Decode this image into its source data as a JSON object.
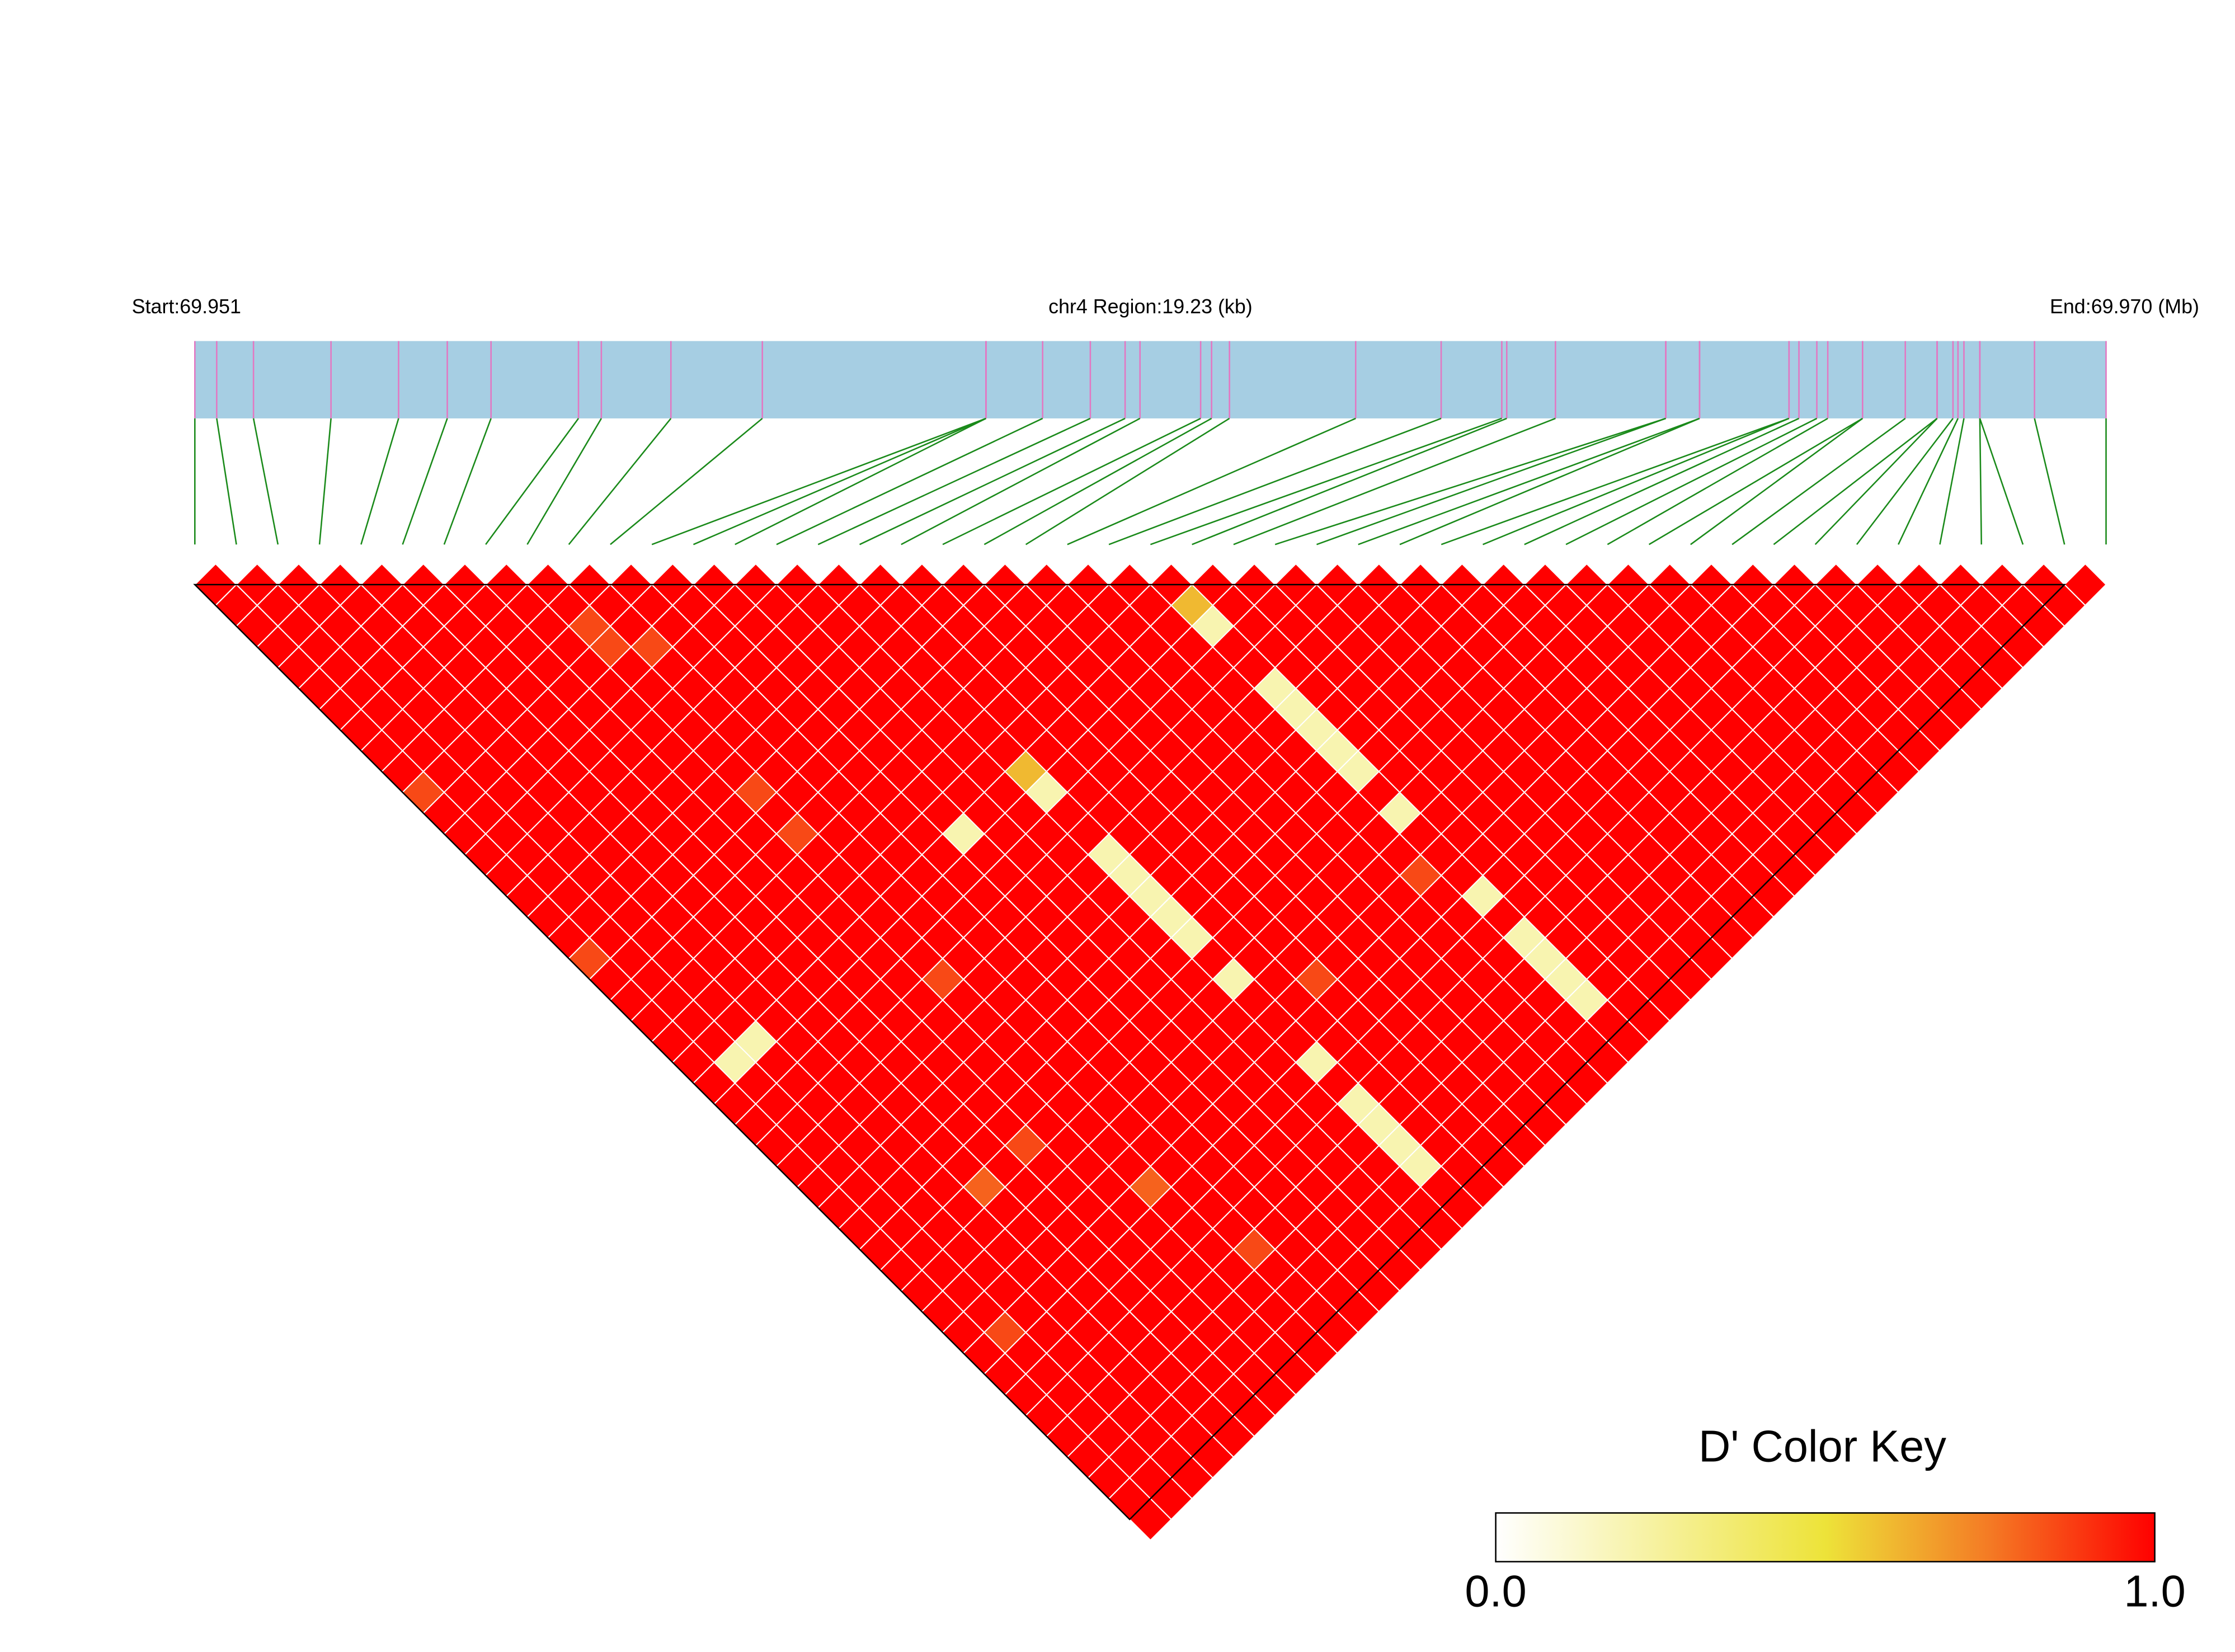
{
  "chart_data": {
    "type": "ld_heatmap",
    "start_label": "Start:69.951",
    "region_label": "chr4 Region:19.23 (kb)",
    "end_label": "End:69.970 (Mb)",
    "xlim": [
      69.951,
      69.97023
    ],
    "positions": [
      69.951,
      69.95122,
      69.95159,
      69.95237,
      69.95305,
      69.95354,
      69.95398,
      69.95486,
      69.95509,
      69.95579,
      69.95671,
      69.95896,
      69.95896,
      69.95896,
      69.95953,
      69.96001,
      69.96036,
      69.96051,
      69.96112,
      69.96123,
      69.96141,
      69.96268,
      69.96354,
      69.96415,
      69.9642,
      69.96469,
      69.9658,
      69.9658,
      69.96614,
      69.96614,
      69.96704,
      69.96704,
      69.96714,
      69.96732,
      69.96743,
      69.96778,
      69.96778,
      69.96821,
      69.96853,
      69.96853,
      69.96869,
      69.96874,
      69.9688,
      69.96896,
      69.96896,
      69.96951,
      69.97023
    ],
    "bar_color": "#a6cee3",
    "snp_line_color": "#e377c2",
    "link_color": "#1a8a1a",
    "ld": [
      [
        1,
        1,
        1,
        1,
        1,
        1,
        1,
        1,
        1,
        1,
        0.85,
        1,
        1,
        1,
        1,
        1,
        1,
        1,
        0.85,
        1,
        1,
        1,
        1,
        1,
        1,
        1,
        1,
        1,
        1,
        1,
        1,
        1,
        1,
        1,
        1,
        1,
        1,
        1,
        1,
        1,
        1,
        1,
        1,
        1,
        1,
        1
      ],
      [
        1,
        1,
        1,
        1,
        1,
        1,
        1,
        1,
        1,
        1,
        1,
        1,
        1,
        1,
        1,
        1,
        1,
        1,
        1,
        1,
        1,
        1,
        1,
        0.2,
        1,
        1,
        1,
        1,
        1,
        1,
        1,
        1,
        1,
        1,
        1,
        1,
        0.85,
        1,
        1,
        1,
        1,
        1,
        1,
        1,
        1
      ],
      [
        1,
        1,
        1,
        1,
        1,
        1,
        1,
        1,
        1,
        1,
        1,
        1,
        1,
        1,
        1,
        1,
        1,
        1,
        1,
        1,
        1,
        1,
        0.2,
        1,
        1,
        1,
        1,
        1,
        1,
        1,
        1,
        1,
        1,
        1,
        1,
        1,
        1,
        1,
        1,
        1,
        1,
        1,
        1,
        1
      ],
      [
        1,
        1,
        1,
        1,
        1,
        1,
        1,
        1,
        1,
        1,
        1,
        1,
        1,
        1,
        1,
        1,
        1,
        1,
        1,
        1,
        1,
        1,
        1,
        1,
        1,
        1,
        1,
        1,
        1,
        1,
        1,
        1,
        1,
        1,
        1,
        1,
        1,
        1,
        1,
        1,
        1,
        1,
        1
      ],
      [
        1,
        1,
        1,
        1,
        1,
        1,
        1,
        1,
        1,
        1,
        1,
        1,
        1,
        1,
        1,
        1,
        1,
        1,
        1,
        1,
        1,
        1,
        1,
        1,
        1,
        1,
        1,
        1,
        1,
        0.8,
        1,
        1,
        1,
        1,
        1,
        1,
        1,
        1,
        1,
        1,
        1,
        1
      ],
      [
        1,
        1,
        1,
        1,
        1,
        1,
        1,
        1,
        1,
        1,
        1,
        1,
        1,
        1,
        1,
        1,
        1,
        1,
        1,
        1,
        1,
        1,
        1,
        1,
        1,
        1,
        1,
        1,
        1,
        1,
        1,
        1,
        1,
        1,
        1,
        1,
        1,
        1,
        1,
        1,
        1
      ],
      [
        1,
        1,
        1,
        1,
        1,
        1,
        1,
        1,
        1,
        1,
        1,
        1,
        1,
        1,
        1,
        1,
        1,
        1,
        1,
        1,
        1,
        1,
        1,
        1,
        1,
        1,
        1,
        0.85,
        1,
        1,
        1,
        1,
        1,
        1,
        1,
        1,
        1,
        1,
        1,
        1
      ],
      [
        1,
        1,
        1,
        1,
        1,
        1,
        1,
        1,
        1,
        1,
        1,
        1,
        1,
        1,
        1,
        1,
        1,
        1,
        1,
        1,
        1,
        1,
        1,
        1,
        1,
        1,
        1,
        1,
        1,
        1,
        1,
        1,
        1,
        1,
        1,
        1,
        1,
        1,
        1
      ],
      [
        1,
        1,
        0.85,
        0.85,
        1,
        1,
        1,
        1,
        1,
        1,
        0.85,
        1,
        0.85,
        1,
        1,
        1,
        1,
        1,
        1,
        0.85,
        1,
        1,
        1,
        1,
        1,
        1,
        1,
        1,
        1,
        0.8,
        1,
        1,
        1,
        1,
        1,
        1,
        1,
        1
      ],
      [
        1,
        1,
        1,
        0.85,
        1,
        1,
        1,
        1,
        1,
        1,
        1,
        1,
        1,
        1,
        1,
        1,
        1,
        1,
        1,
        1,
        1,
        1,
        1,
        1,
        1,
        1,
        1,
        1,
        1,
        1,
        1,
        1,
        0.85,
        1,
        1,
        1,
        1
      ],
      [
        1,
        1,
        1,
        1,
        1,
        1,
        1,
        1,
        1,
        1,
        1,
        1,
        1,
        1,
        1,
        1,
        1,
        1,
        1,
        1,
        1,
        1,
        1,
        1,
        1,
        1,
        1,
        1,
        1,
        1,
        1,
        1,
        1,
        1,
        1,
        1
      ],
      [
        1,
        1,
        1,
        1,
        1,
        1,
        1,
        1,
        1,
        1,
        1,
        1,
        1,
        1,
        1,
        1,
        1,
        1,
        1,
        1,
        1,
        1,
        1,
        1,
        1,
        1,
        1,
        1,
        1,
        1,
        1,
        1,
        1,
        1,
        1
      ],
      [
        1,
        1,
        1,
        1,
        1,
        1,
        1,
        1,
        1,
        1,
        1,
        1,
        0.2,
        1,
        1,
        1,
        1,
        1,
        1,
        1,
        1,
        1,
        1,
        1,
        1,
        1,
        1,
        1,
        1,
        1,
        1,
        1,
        1,
        1
      ],
      [
        1,
        1,
        1,
        1,
        1,
        1,
        1,
        1,
        1,
        1,
        1,
        1,
        1,
        1,
        1,
        1,
        1,
        1,
        1,
        1,
        1,
        1,
        1,
        1,
        1,
        1,
        1,
        1,
        1,
        1,
        1,
        1,
        1
      ],
      [
        1,
        1,
        1,
        1,
        1,
        1,
        1,
        1,
        1,
        1,
        1,
        1,
        1,
        1,
        1,
        1,
        1,
        1,
        1,
        1,
        1,
        1,
        1,
        1,
        1,
        1,
        1,
        1,
        1,
        1,
        1,
        1
      ],
      [
        1,
        1,
        1,
        1,
        1,
        1,
        1,
        1,
        1,
        0.6,
        0.2,
        1,
        1,
        0.2,
        0.2,
        0.2,
        0.2,
        0.2,
        1,
        0.2,
        1,
        1,
        1,
        0.2,
        1,
        0.2,
        0.2,
        0.2,
        0.2,
        1,
        1
      ],
      [
        1,
        1,
        1,
        1,
        1,
        1,
        1,
        1,
        1,
        1,
        1,
        1,
        1,
        1,
        1,
        1,
        1,
        1,
        1,
        1,
        1,
        1,
        1,
        1,
        1,
        1,
        1,
        1,
        1,
        1
      ],
      [
        1,
        1,
        1,
        1,
        1,
        1,
        1,
        1,
        1,
        1,
        1,
        1,
        1,
        1,
        1,
        1,
        1,
        1,
        1,
        0.85,
        1,
        1,
        1,
        1,
        1,
        1,
        1,
        1,
        1
      ],
      [
        1,
        1,
        1,
        1,
        1,
        1,
        1,
        1,
        1,
        1,
        1,
        1,
        1,
        1,
        1,
        1,
        1,
        1,
        1,
        1,
        1,
        1,
        1,
        1,
        1,
        1,
        1,
        1
      ],
      [
        1,
        1,
        1,
        1,
        1,
        1,
        1,
        1,
        1,
        1,
        1,
        1,
        1,
        1,
        1,
        1,
        1,
        1,
        1,
        1,
        1,
        1,
        1,
        1,
        1,
        1,
        1
      ],
      [
        1,
        1,
        1,
        1,
        1,
        1,
        1,
        1,
        1,
        1,
        1,
        1,
        1,
        1,
        1,
        1,
        1,
        1,
        1,
        1,
        1,
        1,
        1,
        1,
        1,
        1
      ],
      [
        1,
        1,
        1,
        1,
        1,
        1,
        1,
        1,
        1,
        1,
        1,
        1,
        1,
        1,
        1,
        1,
        1,
        1,
        1,
        1,
        1,
        1,
        1,
        1,
        1
      ],
      [
        1,
        1,
        1,
        1,
        1,
        1,
        1,
        1,
        1,
        1,
        1,
        1,
        1,
        1,
        0.85,
        1,
        1,
        1,
        1,
        1,
        1,
        1,
        1,
        1
      ],
      [
        1,
        0.6,
        0.2,
        1,
        1,
        0.2,
        0.2,
        0.2,
        0.2,
        0.2,
        1,
        0.2,
        1,
        1,
        1,
        0.2,
        1,
        0.2,
        0.2,
        0.2,
        0.2,
        1,
        1
      ],
      [
        1,
        1,
        1,
        1,
        1,
        1,
        1,
        1,
        1,
        1,
        1,
        1,
        1,
        1,
        1,
        1,
        1,
        1,
        1,
        1,
        1,
        1
      ],
      [
        1,
        1,
        1,
        1,
        1,
        1,
        1,
        1,
        1,
        1,
        1,
        1,
        1,
        1,
        1,
        1,
        1,
        1,
        1,
        1,
        1
      ],
      [
        1,
        1,
        1,
        1,
        1,
        1,
        1,
        1,
        1,
        1,
        1,
        1,
        1,
        1,
        1,
        1,
        1,
        1,
        1,
        1
      ],
      [
        1,
        1,
        1,
        1,
        1,
        1,
        1,
        1,
        1,
        1,
        1,
        1,
        1,
        1,
        1,
        1,
        1,
        1,
        1
      ],
      [
        1,
        1,
        1,
        1,
        1,
        1,
        1,
        1,
        1,
        1,
        1,
        1,
        1,
        1,
        1,
        1,
        1,
        1
      ],
      [
        1,
        1,
        1,
        1,
        1,
        1,
        1,
        1,
        1,
        1,
        1,
        1,
        1,
        1,
        1,
        1,
        1
      ],
      [
        1,
        1,
        1,
        1,
        1,
        1,
        1,
        1,
        1,
        1,
        1,
        1,
        1,
        1,
        1,
        1
      ],
      [
        1,
        1,
        1,
        1,
        1,
        1,
        1,
        1,
        1,
        1,
        1,
        1,
        1,
        1,
        1
      ],
      [
        1,
        1,
        1,
        1,
        1,
        1,
        1,
        1,
        1,
        1,
        1,
        1,
        1,
        1
      ],
      [
        1,
        1,
        1,
        1,
        1,
        1,
        1,
        1,
        1,
        1,
        1,
        1,
        1
      ],
      [
        1,
        1,
        1,
        1,
        1,
        1,
        1,
        1,
        1,
        1,
        1,
        1
      ],
      [
        1,
        1,
        1,
        1,
        1,
        1,
        1,
        1,
        1,
        1,
        1
      ],
      [
        1,
        1,
        1,
        1,
        1,
        1,
        1,
        1,
        1,
        1
      ],
      [
        1,
        1,
        1,
        1,
        1,
        1,
        1,
        1,
        1
      ],
      [
        1,
        1,
        1,
        1,
        1,
        1,
        1,
        1
      ],
      [
        1,
        1,
        1,
        1,
        1,
        1,
        1
      ],
      [
        1,
        1,
        1,
        1,
        1,
        1
      ],
      [
        1,
        1,
        1,
        1,
        1
      ],
      [
        1,
        1,
        1,
        1
      ],
      [
        1,
        1,
        1
      ],
      [
        1,
        1
      ],
      [
        1
      ]
    ],
    "colorbar_title": "D' Color Key",
    "colorscale": [
      [
        0,
        "#ffffff"
      ],
      [
        0.5,
        "#ede339"
      ],
      [
        0.75,
        "#f47a24"
      ],
      [
        1,
        "#ff0000"
      ]
    ],
    "colorbar_lim": [
      0,
      1
    ],
    "colorbar_ticks": [
      {
        "value": 0,
        "label": "0.0"
      },
      {
        "value": 1,
        "label": "1.0"
      }
    ]
  }
}
